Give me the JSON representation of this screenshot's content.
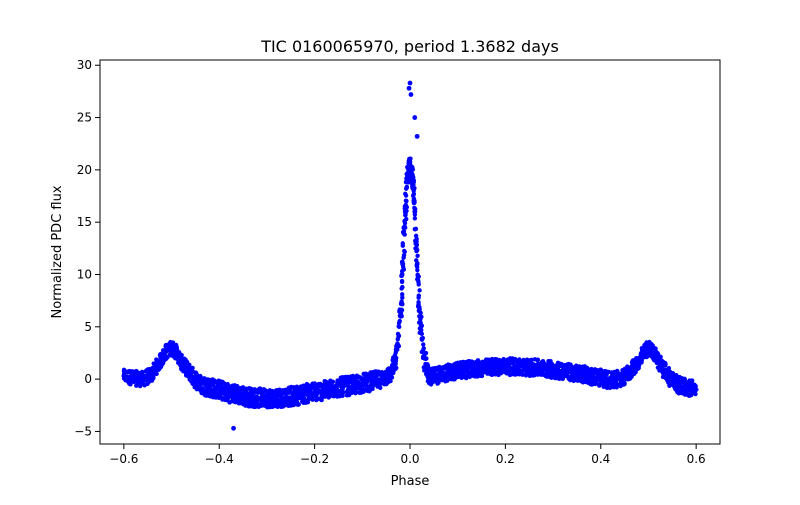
{
  "chart_data": {
    "type": "scatter",
    "title": "TIC 0160065970, period 1.3682 days",
    "xlabel": "Phase",
    "ylabel": "Normalized PDC flux",
    "xlim": [
      -0.65,
      0.65
    ],
    "ylim": [
      -6.2,
      30.5
    ],
    "xticks": [
      -0.6,
      -0.4,
      -0.2,
      0.0,
      0.2,
      0.4,
      0.6
    ],
    "xtick_labels": [
      "−0.6",
      "−0.4",
      "−0.2",
      "0.0",
      "0.2",
      "0.4",
      "0.6"
    ],
    "yticks": [
      -5,
      0,
      5,
      10,
      15,
      20,
      25,
      30
    ],
    "ytick_labels": [
      "−5",
      "0",
      "5",
      "10",
      "15",
      "20",
      "25",
      "30"
    ],
    "grid": false,
    "marker_color": "#0000ff",
    "series": [
      {
        "x": [
          -0.6,
          -0.58,
          -0.56,
          -0.54,
          -0.52,
          -0.51,
          -0.5,
          -0.49,
          -0.48,
          -0.46,
          -0.44,
          -0.42,
          -0.4,
          -0.38,
          -0.36,
          -0.34,
          -0.32,
          -0.3,
          -0.28,
          -0.26,
          -0.24,
          -0.22,
          -0.2,
          -0.18,
          -0.16,
          -0.14,
          -0.12,
          -0.1,
          -0.08,
          -0.06,
          -0.04,
          -0.03,
          -0.02,
          -0.015,
          -0.01,
          -0.005,
          0.0,
          0.005,
          0.01,
          0.015,
          0.02,
          0.03,
          0.04,
          0.06,
          0.08,
          0.1,
          0.12,
          0.14,
          0.16,
          0.18,
          0.2,
          0.22,
          0.24,
          0.26,
          0.28,
          0.3,
          0.32,
          0.34,
          0.36,
          0.38,
          0.4,
          0.42,
          0.44,
          0.46,
          0.48,
          0.49,
          0.5,
          0.51,
          0.52,
          0.54,
          0.56,
          0.58,
          0.6,
          -0.37,
          0.0,
          -0.002,
          0.002,
          0.01,
          0.015
        ],
        "y": [
          0.3,
          0.1,
          0.0,
          0.5,
          2.0,
          2.7,
          3.0,
          2.6,
          1.6,
          0.5,
          -0.5,
          -0.8,
          -1.0,
          -1.3,
          -1.5,
          -1.7,
          -1.8,
          -1.8,
          -1.8,
          -1.7,
          -1.6,
          -1.4,
          -1.2,
          -1.1,
          -0.9,
          -0.7,
          -0.6,
          -0.4,
          -0.2,
          0.0,
          0.5,
          1.8,
          6.0,
          11.0,
          16.0,
          19.5,
          20.5,
          19.5,
          16.0,
          11.0,
          6.0,
          2.0,
          0.2,
          0.4,
          0.6,
          0.8,
          0.9,
          1.0,
          1.1,
          1.2,
          1.2,
          1.2,
          1.1,
          1.1,
          1.0,
          0.9,
          0.8,
          0.6,
          0.5,
          0.3,
          0.1,
          -0.1,
          0.0,
          0.6,
          1.7,
          2.5,
          3.0,
          2.6,
          1.8,
          0.4,
          -0.5,
          -0.8,
          -1.0,
          -4.7,
          28.3,
          27.8,
          27.2,
          25.0,
          23.2
        ],
        "spread": [
          0.6,
          0.7,
          0.7,
          0.7,
          0.7,
          0.7,
          0.7,
          0.7,
          0.7,
          0.8,
          0.9,
          0.9,
          0.9,
          0.9,
          0.9,
          0.9,
          0.9,
          0.9,
          0.9,
          0.9,
          0.9,
          0.9,
          0.9,
          0.9,
          0.9,
          0.9,
          0.9,
          0.9,
          0.9,
          0.8,
          0.8,
          1.0,
          1.5,
          1.5,
          1.2,
          1.0,
          1.0,
          1.0,
          1.2,
          1.5,
          1.5,
          1.0,
          0.8,
          0.8,
          0.8,
          0.8,
          0.8,
          0.8,
          0.8,
          0.8,
          0.8,
          0.8,
          0.8,
          0.8,
          0.8,
          0.8,
          0.8,
          0.8,
          0.8,
          0.8,
          0.8,
          0.8,
          0.8,
          0.7,
          0.7,
          0.7,
          0.7,
          0.7,
          0.7,
          0.8,
          0.8,
          0.8,
          0.8,
          0,
          0,
          0,
          0,
          0,
          0
        ]
      }
    ]
  }
}
